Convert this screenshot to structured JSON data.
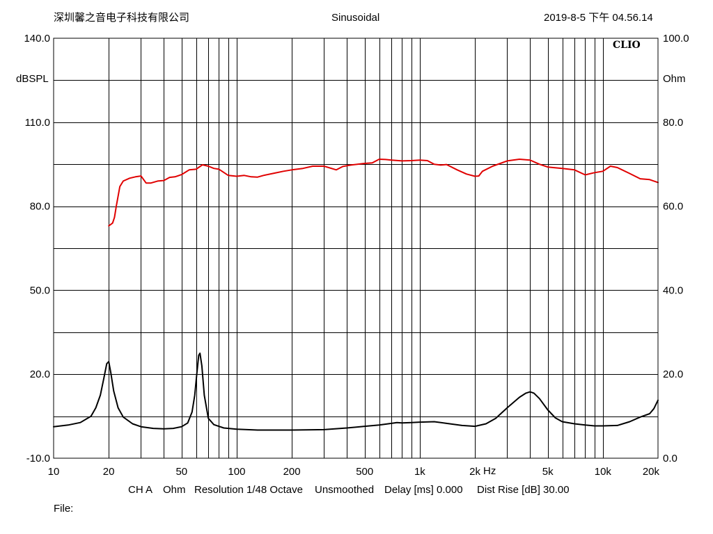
{
  "header": {
    "company": "深圳馨之音电子科技有限公司",
    "mode": "Sinusoidal",
    "datetime": "2019-8-5 下午 04.56.14"
  },
  "brand": "CLIO",
  "left_axis_unit": "dBSPL",
  "right_axis_unit": "Ohm",
  "x_unit": "Hz",
  "status": {
    "channel": "CH A",
    "unit": "Ohm",
    "resolution": "Resolution 1/48 Octave",
    "smoothing": "Unsmoothed",
    "delay": "Delay [ms] 0.000",
    "dist_rise": "Dist Rise [dB] 30.00"
  },
  "file_label": "File:",
  "chart_data": {
    "type": "line",
    "x_scale": "log",
    "xlim": [
      10,
      20000
    ],
    "ylim_left": [
      -10,
      140
    ],
    "ylim_right": [
      0,
      100
    ],
    "grid": true,
    "x_ticks": [
      {
        "value": 10,
        "label": "10"
      },
      {
        "value": 20,
        "label": "20"
      },
      {
        "value": 50,
        "label": "50"
      },
      {
        "value": 100,
        "label": "100"
      },
      {
        "value": 200,
        "label": "200"
      },
      {
        "value": 500,
        "label": "500"
      },
      {
        "value": 1000,
        "label": "1k"
      },
      {
        "value": 2000,
        "label": "2k"
      },
      {
        "value": 5000,
        "label": "5k"
      },
      {
        "value": 10000,
        "label": "10k"
      },
      {
        "value": 20000,
        "label": "20k"
      }
    ],
    "y_left_ticks": [
      {
        "value": 140,
        "label": "140.0"
      },
      {
        "value": 110,
        "label": "110.0"
      },
      {
        "value": 80,
        "label": "80.0"
      },
      {
        "value": 50,
        "label": "50.0"
      },
      {
        "value": 20,
        "label": "20.0"
      },
      {
        "value": -10,
        "label": "-10.0"
      }
    ],
    "y_right_ticks": [
      {
        "value": 100,
        "label": "100.0"
      },
      {
        "value": 80,
        "label": "80.0"
      },
      {
        "value": 60,
        "label": "60.0"
      },
      {
        "value": 40,
        "label": "40.0"
      },
      {
        "value": 20,
        "label": "20.0"
      },
      {
        "value": 0,
        "label": "0.0"
      }
    ],
    "series": [
      {
        "color": "#e00000",
        "axis": "left",
        "x": [
          20,
          20.5,
          21,
          21.5,
          22,
          23,
          24,
          26,
          28,
          30,
          32,
          34,
          37,
          40,
          43,
          46,
          50,
          55,
          60,
          65,
          70,
          75,
          80,
          90,
          100,
          110,
          120,
          130,
          140,
          160,
          180,
          200,
          230,
          260,
          300,
          350,
          380,
          420,
          500,
          550,
          600,
          650,
          700,
          800,
          900,
          1000,
          1100,
          1200,
          1300,
          1400,
          1600,
          1800,
          2000,
          2100,
          2200,
          2500,
          3000,
          3500,
          4000,
          4500,
          5000,
          6000,
          7000,
          8000,
          9000,
          10000,
          11000,
          12000,
          14000,
          16000,
          18000,
          19000,
          20000
        ],
        "y": [
          73,
          73.5,
          74,
          76,
          80,
          87,
          89,
          90,
          90.5,
          90.8,
          88.3,
          88.3,
          89,
          89.2,
          90.3,
          90.5,
          91.3,
          93,
          93.2,
          94.8,
          94.3,
          93.5,
          93.2,
          91,
          90.7,
          91,
          90.5,
          90.4,
          91,
          91.8,
          92.5,
          93,
          93.5,
          94.3,
          94.3,
          93,
          94.2,
          94.7,
          95.3,
          95.5,
          96.8,
          96.7,
          96.5,
          96.2,
          96.3,
          96.5,
          96.3,
          95,
          94.7,
          94.9,
          93,
          91.5,
          90.7,
          90.8,
          92.5,
          94.3,
          96.2,
          96.8,
          96.5,
          95,
          94,
          93.5,
          93,
          91.2,
          92,
          92.5,
          94.3,
          93.8,
          91.7,
          89.8,
          89.5,
          89,
          88.5
        ]
      },
      {
        "color": "#000000",
        "axis": "right",
        "x": [
          10,
          12,
          14,
          16,
          17,
          18,
          18.8,
          19.5,
          20,
          20.5,
          21.3,
          22.5,
          24,
          27,
          30,
          35,
          40,
          45,
          50,
          54,
          57,
          59,
          60.5,
          62,
          63,
          64.5,
          66.5,
          70,
          75,
          85,
          100,
          130,
          200,
          300,
          400,
          500,
          600,
          700,
          750,
          800,
          900,
          1000,
          1200,
          1400,
          1700,
          2000,
          2300,
          2600,
          3000,
          3500,
          3800,
          4000,
          4200,
          4500,
          5000,
          5500,
          6000,
          7000,
          8000,
          9000,
          10000,
          12000,
          14000,
          16000,
          18000,
          19000,
          20000
        ],
        "y": [
          7.5,
          7.9,
          8.5,
          10,
          12,
          15,
          19,
          22.5,
          23,
          20.5,
          16,
          12,
          9.8,
          8.2,
          7.5,
          7.1,
          7,
          7.1,
          7.5,
          8.4,
          11,
          15,
          20,
          24.5,
          25,
          22,
          15,
          9.5,
          8,
          7.2,
          6.9,
          6.7,
          6.7,
          6.8,
          7.2,
          7.6,
          7.9,
          8.3,
          8.5,
          8.4,
          8.5,
          8.6,
          8.7,
          8.3,
          7.8,
          7.6,
          8.2,
          9.5,
          12,
          14.5,
          15.5,
          15.8,
          15.5,
          14.2,
          11.5,
          9.6,
          8.7,
          8.2,
          7.9,
          7.7,
          7.7,
          7.8,
          8.7,
          9.8,
          10.6,
          11.8,
          13.8
        ]
      }
    ]
  }
}
